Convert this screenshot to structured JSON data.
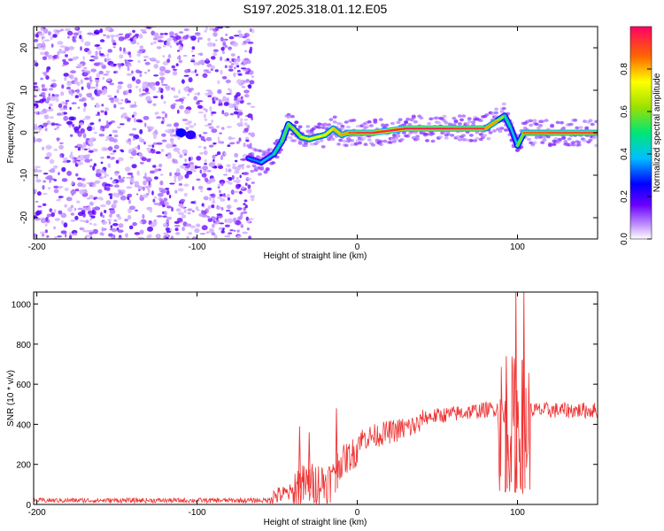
{
  "title": "S197.2025.318.01.12.E05",
  "chart_data": [
    {
      "type": "heatmap",
      "name": "spectrogram",
      "xlabel": "Height of straight line (km)",
      "ylabel": "Frequency (Hz)",
      "xlim": [
        -202,
        150
      ],
      "ylim": [
        -25,
        25
      ],
      "xticks": [
        -200,
        -100,
        0,
        100
      ],
      "yticks": [
        -20,
        -10,
        0,
        10,
        20
      ],
      "colorbar": {
        "label": "Normalized spectral amplitude",
        "range": [
          0,
          1
        ],
        "ticks": [
          0.0,
          0.2,
          0.4,
          0.6,
          0.8
        ]
      },
      "colors": {
        "noise": "#8a2be2",
        "ridge_low": "#0000ff",
        "ridge_mid": "#00cc66",
        "ridge_high": "#ff0033"
      },
      "ridge": {
        "x": [
          -68,
          -60,
          -52,
          -47,
          -43,
          -40,
          -35,
          -30,
          -25,
          -20,
          -15,
          -10,
          -5,
          0,
          10,
          30,
          60,
          80,
          88,
          92,
          96,
          100,
          104,
          120,
          150
        ],
        "freq": [
          -6,
          -7,
          -5,
          -2,
          2,
          1,
          -1,
          -1.5,
          -1,
          -0.5,
          1,
          -0.5,
          0,
          0,
          0,
          1,
          1,
          1,
          3,
          4,
          1,
          -3,
          0,
          0,
          0
        ],
        "amplitude": [
          0.3,
          0.35,
          0.4,
          0.5,
          0.55,
          0.6,
          0.65,
          0.7,
          0.7,
          0.7,
          0.75,
          0.75,
          0.8,
          0.85,
          0.9,
          0.9,
          0.9,
          0.85,
          0.7,
          0.5,
          0.4,
          0.35,
          0.8,
          0.85,
          0.85
        ]
      },
      "noise_region_x": [
        -202,
        -65
      ],
      "blobs": [
        {
          "x": -110,
          "freq": 0,
          "amplitude": 0.25
        },
        {
          "x": -104,
          "freq": -0.5,
          "amplitude": 0.22
        }
      ]
    },
    {
      "type": "line",
      "name": "snr",
      "xlabel": "Height of straight line (km)",
      "ylabel": "SNR (10 * v/v)",
      "xlim": [
        -202,
        150
      ],
      "ylim": [
        0,
        1060
      ],
      "xticks": [
        -200,
        -100,
        0,
        100
      ],
      "yticks": [
        0,
        200,
        400,
        600,
        800,
        1000
      ],
      "color": "#ee3333",
      "segments": [
        {
          "x0": -202,
          "x1": -55,
          "base": 20,
          "noise": 12
        },
        {
          "x0": -55,
          "x1": -40,
          "base": 60,
          "noise": 45
        },
        {
          "x0": -40,
          "x1": -15,
          "base": 120,
          "noise": 110
        },
        {
          "x0": -15,
          "x1": 0,
          "base": 270,
          "noise": 80
        },
        {
          "x0": 0,
          "x1": 40,
          "base": 400,
          "noise": 60
        },
        {
          "x0": 40,
          "x1": 88,
          "base": 480,
          "noise": 40
        },
        {
          "x0": 88,
          "x1": 108,
          "base": 400,
          "noise": 350
        },
        {
          "x0": 108,
          "x1": 150,
          "base": 470,
          "noise": 40
        }
      ],
      "spikes": [
        {
          "x": -36,
          "y": 390
        },
        {
          "x": -30,
          "y": 360
        },
        {
          "x": -13,
          "y": 480
        },
        {
          "x": 93,
          "y": 740
        },
        {
          "x": 99,
          "y": 1060
        },
        {
          "x": 104,
          "y": 1060
        }
      ]
    }
  ]
}
